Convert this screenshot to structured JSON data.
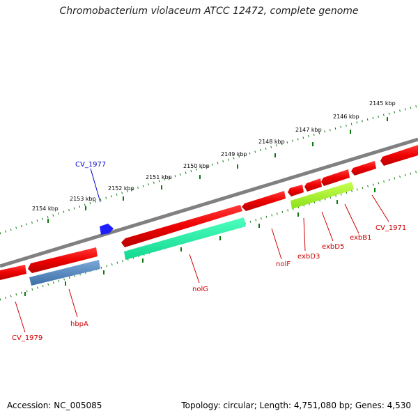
{
  "title": "Chromobacterium violaceum ATCC 12472, complete genome",
  "footer": {
    "accession": "Accession: NC_005085",
    "summary": "Topology: circular; Length: 4,751,080 bp; Genes: 4,530"
  },
  "colors": {
    "backbone": "#808080",
    "tick": "#0a7a0a",
    "gene_fwd": "#ff0000",
    "label_red": "#cc0000",
    "label_blue": "#0000cc"
  },
  "ticks": [
    "2145 kbp",
    "2146 kbp",
    "2147 kbp",
    "2148 kbp",
    "2149 kbp",
    "2150 kbp",
    "2151 kbp",
    "2152 kbp",
    "2153 kbp",
    "2154 kbp"
  ],
  "gene_labels": [
    "CV_1977",
    "nolF",
    "exbD3",
    "exbD5",
    "exbB1",
    "CV_1971",
    "nolG",
    "hbpA",
    "CV_1979"
  ]
}
